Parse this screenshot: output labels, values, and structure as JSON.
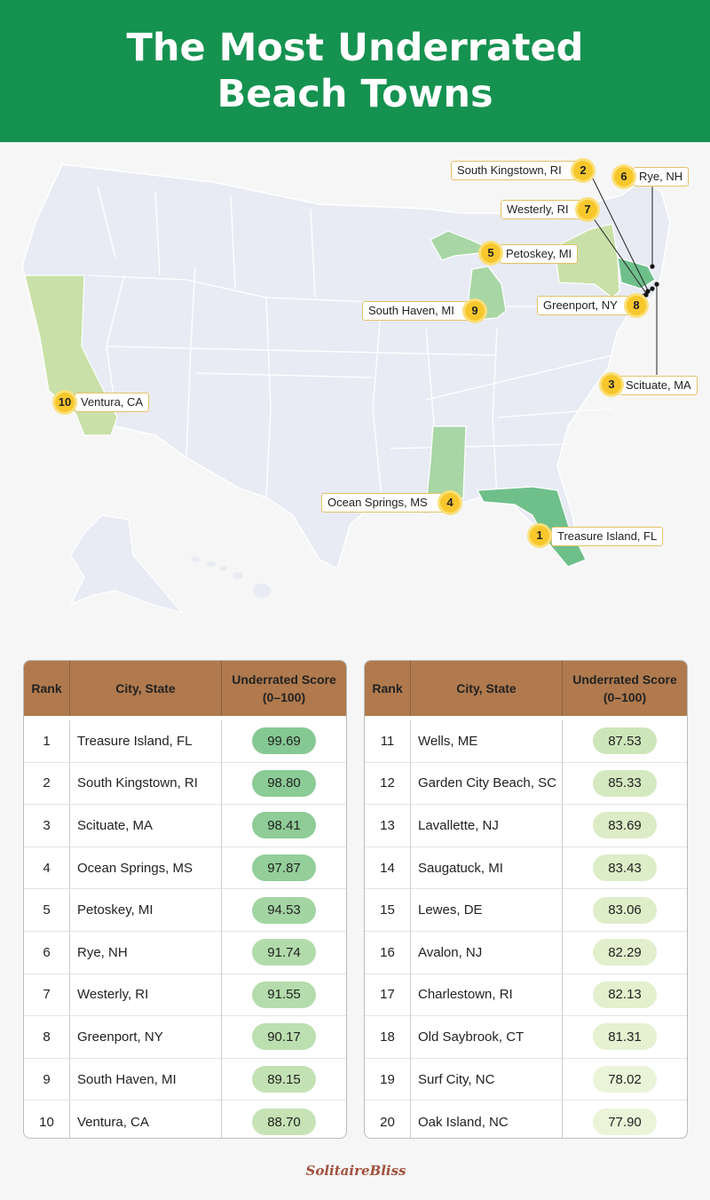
{
  "title": "The Most Underrated Beach Towns",
  "map_labels": [
    {
      "rank": "1",
      "name": "Treasure Island, FL"
    },
    {
      "rank": "2",
      "name": "South Kingstown, RI"
    },
    {
      "rank": "3",
      "name": "Scituate, MA"
    },
    {
      "rank": "4",
      "name": "Ocean Springs, MS"
    },
    {
      "rank": "5",
      "name": "Petoskey, MI"
    },
    {
      "rank": "6",
      "name": "Rye, NH"
    },
    {
      "rank": "7",
      "name": "Westerly, RI"
    },
    {
      "rank": "8",
      "name": "Greenport, NY"
    },
    {
      "rank": "9",
      "name": "South Haven, MI"
    },
    {
      "rank": "10",
      "name": "Ventura, CA"
    }
  ],
  "table": {
    "headers": {
      "rank": "Rank",
      "city": "City, State",
      "score_line1": "Underrated Score",
      "score_line2": "(0–100)"
    },
    "rows": [
      {
        "rank": "1",
        "city": "Treasure Island, FL",
        "score": "99.69",
        "color": "#86c893"
      },
      {
        "rank": "2",
        "city": "South Kingstown, RI",
        "score": "98.80",
        "color": "#8bcb95"
      },
      {
        "rank": "3",
        "city": "Scituate, MA",
        "score": "98.41",
        "color": "#8fcc97"
      },
      {
        "rank": "4",
        "city": "Ocean Springs, MS",
        "score": "97.87",
        "color": "#94ce99"
      },
      {
        "rank": "5",
        "city": "Petoskey, MI",
        "score": "94.53",
        "color": "#a3d5a2"
      },
      {
        "rank": "6",
        "city": "Rye, NH",
        "score": "91.74",
        "color": "#b2dbab"
      },
      {
        "rank": "7",
        "city": "Westerly, RI",
        "score": "91.55",
        "color": "#b4dcac"
      },
      {
        "rank": "8",
        "city": "Greenport, NY",
        "score": "90.17",
        "color": "#bcdfb0"
      },
      {
        "rank": "9",
        "city": "South Haven, MI",
        "score": "89.15",
        "color": "#c3e2b3"
      },
      {
        "rank": "10",
        "city": "Ventura, CA",
        "score": "88.70",
        "color": "#c7e3b5"
      },
      {
        "rank": "11",
        "city": "Wells, ME",
        "score": "87.53",
        "color": "#cde6b9"
      },
      {
        "rank": "12",
        "city": "Garden City Beach, SC",
        "score": "85.33",
        "color": "#d5e9c0"
      },
      {
        "rank": "13",
        "city": "Lavallette, NJ",
        "score": "83.69",
        "color": "#dbecc6"
      },
      {
        "rank": "14",
        "city": "Saugatuck, MI",
        "score": "83.43",
        "color": "#dcedc7"
      },
      {
        "rank": "15",
        "city": "Lewes, DE",
        "score": "83.06",
        "color": "#deeec9"
      },
      {
        "rank": "16",
        "city": "Avalon, NJ",
        "score": "82.29",
        "color": "#e1efcc"
      },
      {
        "rank": "17",
        "city": "Charlestown, RI",
        "score": "82.13",
        "color": "#e2f0cd"
      },
      {
        "rank": "18",
        "city": "Old Saybrook, CT",
        "score": "81.31",
        "color": "#e5f1d0"
      },
      {
        "rank": "19",
        "city": "Surf City, NC",
        "score": "78.02",
        "color": "#eaf4d8"
      },
      {
        "rank": "20",
        "city": "Oak Island, NC",
        "score": "77.90",
        "color": "#ebf4d9"
      }
    ]
  },
  "logo": "SolitaireBliss"
}
